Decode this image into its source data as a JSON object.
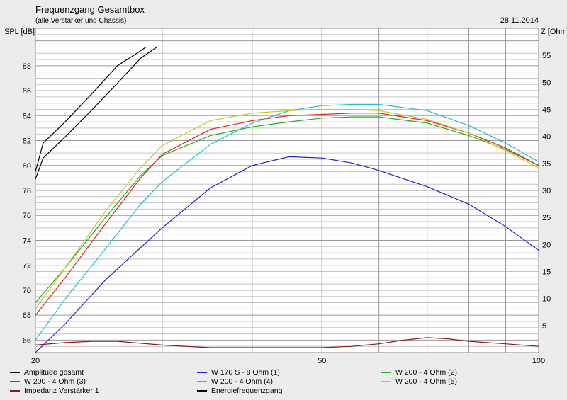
{
  "chart_data": {
    "type": "line",
    "title": "Frequenzgang Gesamtbox",
    "subtitle": "(alle Verstärker und Chassis)",
    "date": "28.11.2014",
    "ylabel_left": "SPL [dB]",
    "ylabel_right": "Z [Ohm]",
    "x_scale": "log",
    "xlim": [
      20,
      100
    ],
    "x_ticks": [
      20,
      50,
      100
    ],
    "ylim_left": [
      65,
      91
    ],
    "y_ticks_left": [
      66,
      68,
      70,
      72,
      74,
      76,
      78,
      80,
      82,
      84,
      86,
      88
    ],
    "ylim_right": [
      0,
      60
    ],
    "y_ticks_right": [
      5,
      10,
      15,
      20,
      25,
      30,
      35,
      40,
      45,
      50,
      55
    ],
    "grid": true,
    "legend_placement": "bottom",
    "series": [
      {
        "name": "Amplitude gesamt",
        "color": "#000000",
        "x": [
          20,
          20.5,
          22,
          24,
          26,
          27.5,
          28.5
        ],
        "y": [
          79.5,
          81.8,
          83.5,
          85.8,
          88.0,
          88.9,
          89.5
        ]
      },
      {
        "name": "W 170 S - 8 Ohm (1)",
        "color": "#2020d0",
        "x": [
          20,
          22,
          25,
          30,
          35,
          40,
          45,
          50,
          55,
          60,
          70,
          80,
          90,
          100
        ],
        "y": [
          65.0,
          67.3,
          70.8,
          75.0,
          78.2,
          80.0,
          80.7,
          80.6,
          80.2,
          79.6,
          78.3,
          76.9,
          75.1,
          73.2
        ]
      },
      {
        "name": "W 200 - 4 Ohm (2)",
        "color": "#20b020",
        "x": [
          20,
          22,
          25,
          28,
          30,
          35,
          40,
          45,
          50,
          55,
          60,
          70,
          80,
          90,
          100
        ],
        "y": [
          69.0,
          71.8,
          75.8,
          79.2,
          80.8,
          82.4,
          83.1,
          83.5,
          83.8,
          83.9,
          83.9,
          83.4,
          82.4,
          81.3,
          80.0
        ]
      },
      {
        "name": "W 200 - 4 Ohm (3)",
        "color": "#e02020",
        "x": [
          20,
          22,
          25,
          28,
          30,
          35,
          40,
          45,
          50,
          55,
          60,
          70,
          80,
          90,
          100
        ],
        "y": [
          68.0,
          71.0,
          75.3,
          79.0,
          80.9,
          82.9,
          83.6,
          84.0,
          84.1,
          84.2,
          84.2,
          83.6,
          82.6,
          81.4,
          80.0
        ]
      },
      {
        "name": "W 200 - 4 Ohm (4)",
        "color": "#20c0d0",
        "x": [
          20,
          22,
          25,
          28,
          30,
          35,
          40,
          45,
          50,
          55,
          60,
          70,
          80,
          90,
          100
        ],
        "y": [
          66.0,
          69.3,
          73.3,
          76.9,
          78.7,
          81.7,
          83.4,
          84.4,
          84.8,
          84.9,
          84.9,
          84.4,
          83.2,
          81.8,
          80.3
        ]
      },
      {
        "name": "W 200 - 4 Ohm (5)",
        "color": "#c8c820",
        "x": [
          20,
          22,
          25,
          28,
          30,
          35,
          40,
          45,
          50,
          55,
          60,
          70,
          80,
          90,
          100
        ],
        "y": [
          68.5,
          71.8,
          76.3,
          79.8,
          81.6,
          83.6,
          84.2,
          84.4,
          84.5,
          84.5,
          84.4,
          83.7,
          82.6,
          81.2,
          79.8
        ]
      },
      {
        "name": "Impedanz Verstärker 1",
        "color": "#8b1a1a",
        "x": [
          20,
          22,
          24,
          26,
          30,
          35,
          40,
          45,
          50,
          55,
          60,
          65,
          70,
          75,
          80,
          90,
          100
        ],
        "y": [
          65.6,
          65.8,
          65.9,
          65.9,
          65.6,
          65.4,
          65.4,
          65.4,
          65.4,
          65.5,
          65.7,
          66.0,
          66.2,
          66.1,
          65.9,
          65.7,
          65.5
        ]
      },
      {
        "name": "Energiefrequenzgang",
        "color": "#000000",
        "x": [
          20,
          20.5,
          22,
          24,
          26,
          28,
          29.5
        ],
        "y": [
          78.9,
          80.6,
          82.3,
          84.5,
          86.6,
          88.6,
          89.5
        ]
      }
    ]
  }
}
